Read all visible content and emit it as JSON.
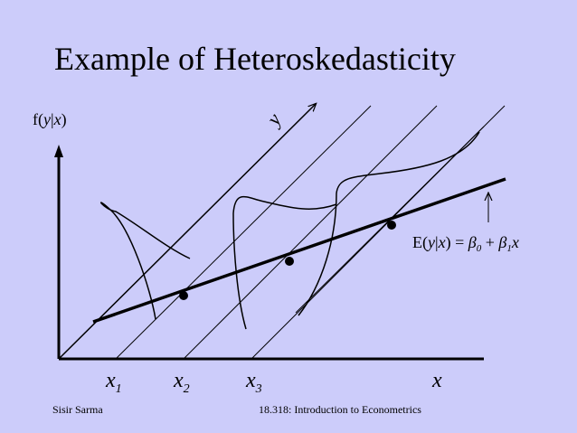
{
  "slide": {
    "title": "Example of Heteroskedasticity",
    "footer_left": "Sisir Sarma",
    "footer_center": "18.318: Introduction to Econometrics"
  },
  "diagram": {
    "vertical_axis_label": {
      "prefix": "f(",
      "y": "y",
      "bar": "|",
      "x": "x",
      "suffix": ")"
    },
    "depth_axis_label": "y",
    "horizontal_axis_label": "x",
    "x_markers": [
      {
        "base": "x",
        "sub": "1"
      },
      {
        "base": "x",
        "sub": "2"
      },
      {
        "base": "x",
        "sub": "3"
      }
    ],
    "regression_label": {
      "lhs_prefix": "E(",
      "lhs_y": "y",
      "lhs_bar": "|",
      "lhs_x": "x",
      "lhs_suffix": ")",
      "eq": " = ",
      "beta": "β",
      "sub0": "0",
      "plus": " + ",
      "sub1": "1",
      "var": "x"
    },
    "colors": {
      "background": "#ccccfa",
      "ink": "#000000"
    }
  }
}
